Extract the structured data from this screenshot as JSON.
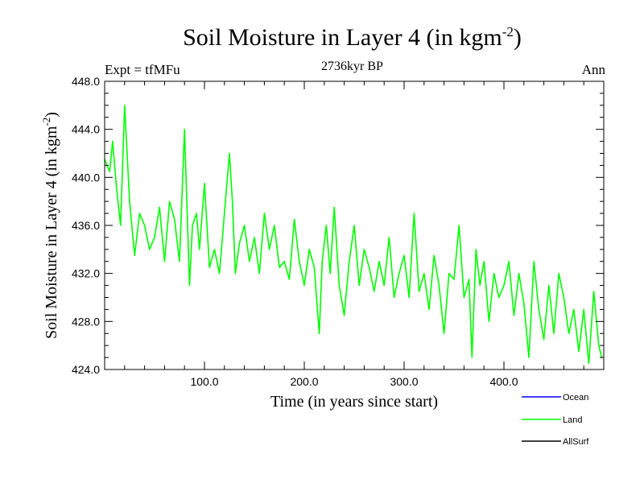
{
  "header": {
    "title": "Soil Moisture in Layer 4 (in kgm",
    "title_sup": "-2",
    "title_end": ")",
    "subtitle": "2736kyr BP",
    "left_note": "Expt = tfMFu",
    "right_note": "Ann"
  },
  "chart_data": {
    "type": "line",
    "title": "Soil Moisture in Layer 4 (in kgm-2)",
    "subtitle": "2736kyr BP",
    "xlabel": "Time (in years since start)",
    "ylabel": "Soil Moisture in Layer 4 (in kgm-2)",
    "ylabel_main": "Soil Moisture in Layer 4 (in kgm",
    "ylabel_sup": "-2",
    "ylabel_end": ")",
    "xlim": [
      0,
      500
    ],
    "ylim": [
      424,
      448
    ],
    "x_ticks": [
      100,
      200,
      300,
      400
    ],
    "x_tick_labels": [
      "100.0",
      "200.0",
      "300.0",
      "400.0"
    ],
    "y_ticks": [
      424,
      428,
      432,
      436,
      440,
      444,
      448
    ],
    "y_tick_labels": [
      "424.0",
      "428.0",
      "432.0",
      "436.0",
      "440.0",
      "444.0",
      "448.0"
    ],
    "series": [
      {
        "name": "Land",
        "color": "#00ff00",
        "x": [
          0,
          5,
          8,
          12,
          16,
          20,
          25,
          30,
          35,
          40,
          45,
          50,
          55,
          60,
          65,
          70,
          75,
          80,
          85,
          88,
          92,
          95,
          100,
          105,
          110,
          115,
          120,
          125,
          128,
          131,
          135,
          140,
          145,
          150,
          155,
          160,
          165,
          170,
          175,
          180,
          185,
          190,
          195,
          200,
          205,
          210,
          215,
          218,
          222,
          226,
          230,
          235,
          240,
          245,
          250,
          255,
          260,
          265,
          270,
          275,
          280,
          285,
          290,
          295,
          300,
          305,
          310,
          315,
          320,
          325,
          330,
          335,
          340,
          345,
          350,
          355,
          360,
          365,
          368,
          372,
          376,
          380,
          385,
          390,
          395,
          400,
          405,
          410,
          415,
          420,
          425,
          430,
          435,
          440,
          445,
          450,
          455,
          460,
          465,
          470,
          475,
          480,
          485,
          490,
          495,
          498
        ],
        "values": [
          441.5,
          440.5,
          443.0,
          439.0,
          436.0,
          446.0,
          438.0,
          433.5,
          437.0,
          436.0,
          434.0,
          435.0,
          437.5,
          433.0,
          438.0,
          436.5,
          433.0,
          444.0,
          431.0,
          436.0,
          437.0,
          434.0,
          439.5,
          432.5,
          434.0,
          432.0,
          437.0,
          442.0,
          438.0,
          432.0,
          434.5,
          436.0,
          433.0,
          435.0,
          432.0,
          437.0,
          434.0,
          436.0,
          432.5,
          433.0,
          431.5,
          436.5,
          433.0,
          431.0,
          434.0,
          432.5,
          427.0,
          433.0,
          436.0,
          432.0,
          437.5,
          431.0,
          428.5,
          433.0,
          436.0,
          431.0,
          434.0,
          432.5,
          430.5,
          433.0,
          431.0,
          435.0,
          430.0,
          432.0,
          433.5,
          430.0,
          437.0,
          430.5,
          432.0,
          429.0,
          433.5,
          431.0,
          427.0,
          432.0,
          431.5,
          436.0,
          430.0,
          431.5,
          425.0,
          434.0,
          431.0,
          433.0,
          428.0,
          432.0,
          430.0,
          431.0,
          433.0,
          428.5,
          432.0,
          429.5,
          425.0,
          433.0,
          429.0,
          426.5,
          431.0,
          427.0,
          432.0,
          430.0,
          427.0,
          429.0,
          425.5,
          429.0,
          424.5,
          430.5,
          426.0,
          425.0
        ]
      }
    ],
    "legend": [
      {
        "label": "Ocean",
        "color": "#0000ff"
      },
      {
        "label": "Land",
        "color": "#00ff00"
      },
      {
        "label": "AllSurf",
        "color": "#000000"
      }
    ]
  }
}
